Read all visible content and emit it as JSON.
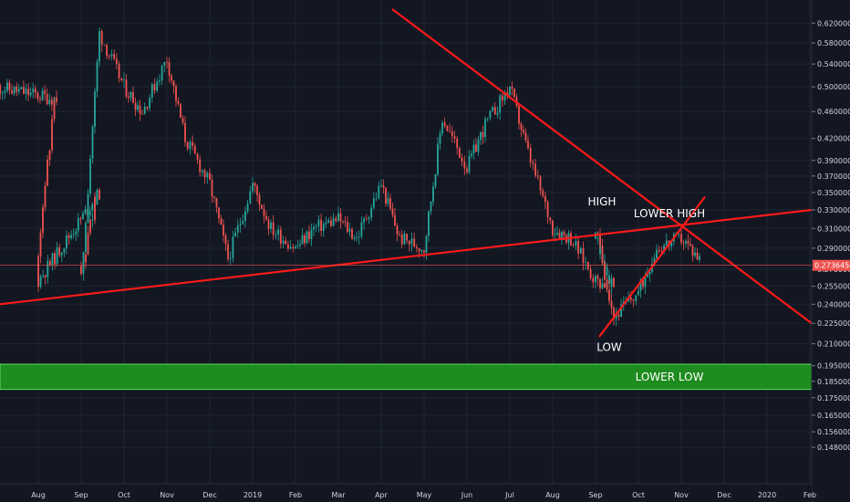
{
  "chart_data": {
    "type": "candlestick",
    "title": "",
    "xlabel": "",
    "ylabel": "",
    "y_scale": "log",
    "ylim": [
      0.135,
      0.65
    ],
    "grid": true,
    "x_ticks": [
      "Aug",
      "Sep",
      "Oct",
      "Nov",
      "Dec",
      "2019",
      "Feb",
      "Mar",
      "Apr",
      "May",
      "Jun",
      "Jul",
      "Aug",
      "Sep",
      "Oct",
      "Nov",
      "Dec",
      "2020",
      "Feb"
    ],
    "y_ticks": [
      "0.62000000",
      "0.58000000",
      "0.54000000",
      "0.50000000",
      "0.46000000",
      "0.42000000",
      "0.39000000",
      "0.37000000",
      "0.35000000",
      "0.33000000",
      "0.31000000",
      "0.29000000",
      "0.27000000",
      "0.25500000",
      "0.24000000",
      "0.22500000",
      "0.21000000",
      "0.19500000",
      "0.18500000",
      "0.17500000",
      "0.16500000",
      "0.15600000",
      "0.14800000"
    ],
    "current_price": "0.27364561",
    "colors": {
      "up": "#26a69a",
      "down": "#ef5350",
      "trend": "#ff1a1a",
      "zone": "#1e8c1e",
      "background": "#131722"
    },
    "trendlines": [
      {
        "from": [
          "Jul 2018",
          0.24
        ],
        "to": [
          "Feb 2020",
          0.33
        ]
      },
      {
        "from": [
          "Apr 2019",
          0.65
        ],
        "to": [
          "Feb 2020",
          0.225
        ]
      },
      {
        "from": [
          "Sep 2019",
          0.215
        ],
        "to": [
          "Dec 2019",
          0.345
        ]
      }
    ],
    "zone": {
      "label": "LOWER LOW",
      "low": 0.18,
      "high": 0.196
    },
    "annotations": [
      {
        "text": "HIGH",
        "date": "Sep 2019",
        "price": 0.335
      },
      {
        "text": "LOWER HIGH",
        "date": "Nov 2019",
        "price": 0.322
      },
      {
        "text": "LOW",
        "date": "Sep 2019",
        "price": 0.205
      }
    ],
    "price_path": [
      [
        "Jul 2018",
        0.5
      ],
      [
        "Aug 2018",
        0.48
      ],
      [
        "Aug 2018",
        0.26
      ],
      [
        "Sep 2018",
        0.35
      ],
      [
        "Sep 2018",
        0.26
      ],
      [
        "Sep 2018",
        0.6
      ],
      [
        "Oct 2018",
        0.5
      ],
      [
        "Oct 2018",
        0.46
      ],
      [
        "Nov 2018",
        0.55
      ],
      [
        "Nov 2018",
        0.42
      ],
      [
        "Dec 2018",
        0.36
      ],
      [
        "Dec 2018",
        0.28
      ],
      [
        "2019",
        0.36
      ],
      [
        "2019",
        0.31
      ],
      [
        "Feb 2019",
        0.29
      ],
      [
        "Feb 2019",
        0.31
      ],
      [
        "Mar 2019",
        0.32
      ],
      [
        "Mar 2019",
        0.3
      ],
      [
        "Apr 2019",
        0.36
      ],
      [
        "Apr 2019",
        0.3
      ],
      [
        "May 2019",
        0.29
      ],
      [
        "May 2019",
        0.45
      ],
      [
        "Jun 2019",
        0.38
      ],
      [
        "Jun 2019",
        0.44
      ],
      [
        "Jul 2019",
        0.5
      ],
      [
        "Jul 2019",
        0.4
      ],
      [
        "Aug 2019",
        0.31
      ],
      [
        "Aug 2019",
        0.3
      ],
      [
        "Sep 2019",
        0.26
      ],
      [
        "Sep 2019",
        0.255
      ],
      [
        "Sep 2019",
        0.31
      ],
      [
        "Sep 2019",
        0.23
      ],
      [
        "Oct 2019",
        0.25
      ],
      [
        "Oct 2019",
        0.29
      ],
      [
        "Nov 2019",
        0.3
      ],
      [
        "Nov 2019",
        0.28
      ]
    ]
  }
}
